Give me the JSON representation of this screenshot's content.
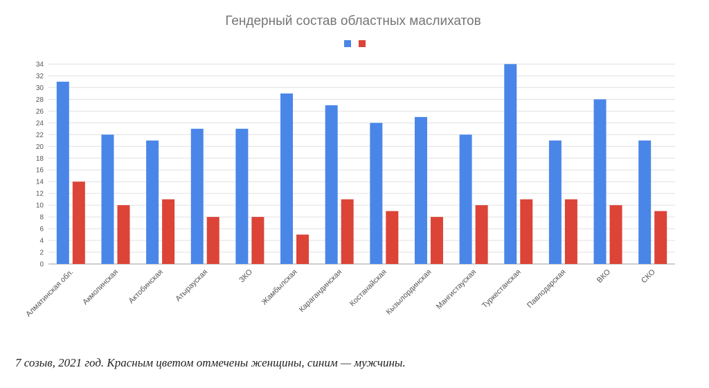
{
  "chart_data": {
    "type": "bar",
    "title": "Гендерный состав областных маслихатов",
    "categories": [
      "Алматинская обл.",
      "Акмолинская",
      "Актобинская",
      "Атырауская",
      "ЗКО",
      "Жамбылская",
      "Карагандинская",
      "Костанайская",
      "Кызылординская",
      "Мангистауская",
      "Туркестанская",
      "Павлодарская",
      "ВКО",
      "СКО"
    ],
    "series": [
      {
        "color": "#4a86e8",
        "values": [
          31,
          22,
          21,
          23,
          23,
          29,
          27,
          24,
          25,
          22,
          34,
          21,
          28,
          21
        ]
      },
      {
        "color": "#db4437",
        "values": [
          14,
          10,
          11,
          8,
          8,
          5,
          11,
          9,
          8,
          10,
          11,
          11,
          10,
          9
        ]
      }
    ],
    "ylim": [
      0,
      35
    ],
    "yticks": [
      0,
      2,
      4,
      6,
      8,
      10,
      12,
      14,
      16,
      18,
      20,
      22,
      24,
      26,
      28,
      30,
      32,
      34
    ],
    "legend_position": "top-center",
    "grid": true
  },
  "caption": "7 созыв, 2021 год. Красным цветом отмечены женщины, синим — мужчины."
}
